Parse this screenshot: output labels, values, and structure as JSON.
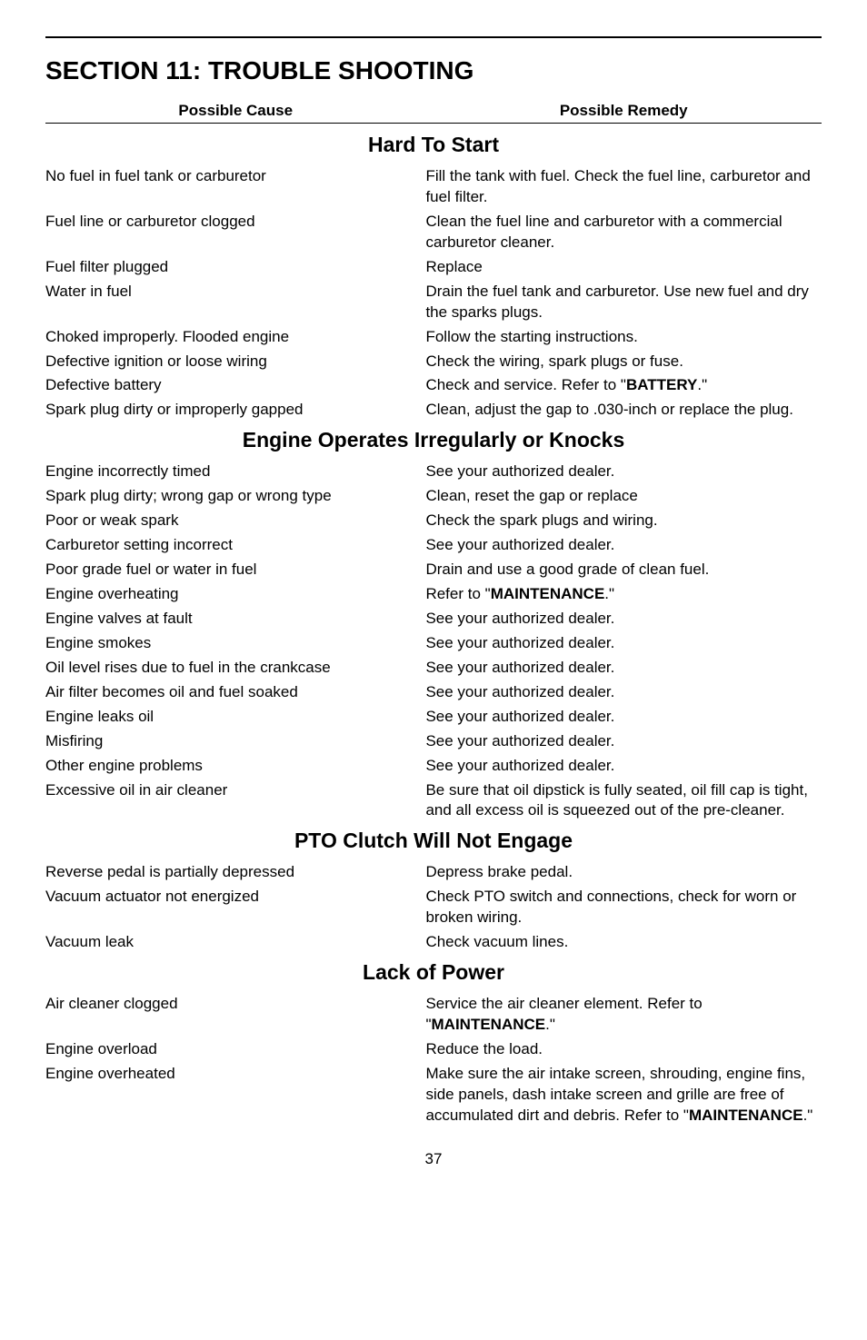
{
  "page": {
    "sectionTitle": "SECTION 11: TROUBLE SHOOTING",
    "columnHeaders": {
      "left": "Possible Cause",
      "right": "Possible Remedy"
    },
    "pageNumber": "37"
  },
  "sections": {
    "hardToStart": {
      "heading": "Hard To Start",
      "rows": [
        {
          "cause": "No fuel in fuel tank or carburetor",
          "remedy": "Fill the tank with fuel. Check the fuel line, carburetor and fuel filter."
        },
        {
          "cause": "Fuel line or carburetor clogged",
          "remedy": "Clean the fuel line and carburetor with a commercial carburetor cleaner."
        },
        {
          "cause": "Fuel filter plugged",
          "remedy": "Replace"
        },
        {
          "cause": "Water in fuel",
          "remedy": "Drain the fuel tank and carburetor. Use new fuel and dry the sparks plugs."
        },
        {
          "cause": "Choked improperly. Flooded engine",
          "remedy": "Follow the starting instructions."
        },
        {
          "cause": "Defective ignition or loose wiring",
          "remedy": "Check the wiring, spark plugs or fuse."
        }
      ],
      "batteryRow": {
        "cause": "Defective battery",
        "remedyPrefix": "Check and service. Refer to \"",
        "remedyBold": "BATTERY",
        "remedySuffix": ".\""
      },
      "lastRow": {
        "cause": "Spark plug dirty or improperly gapped",
        "remedy": "Clean, adjust the gap to .030-inch or replace the plug."
      }
    },
    "engineOperates": {
      "heading": "Engine Operates Irregularly or Knocks",
      "rows": [
        {
          "cause": "Engine incorrectly timed",
          "remedy": "See your authorized dealer."
        },
        {
          "cause": "Spark plug dirty; wrong gap or wrong type",
          "remedy": "Clean, reset the gap or replace"
        },
        {
          "cause": "Poor or weak spark",
          "remedy": "Check the spark plugs and wiring."
        },
        {
          "cause": "Carburetor setting incorrect",
          "remedy": "See your authorized dealer."
        },
        {
          "cause": "Poor grade fuel or water in fuel",
          "remedy": "Drain and use a good grade of clean fuel."
        }
      ],
      "maintenanceRow": {
        "cause": "Engine overheating",
        "remedyPrefix": "Refer to \"",
        "remedyBold": "MAINTENANCE",
        "remedySuffix": ".\""
      },
      "rowsAfter": [
        {
          "cause": "Engine valves at fault",
          "remedy": "See your authorized dealer."
        },
        {
          "cause": "Engine smokes",
          "remedy": "See your authorized dealer."
        },
        {
          "cause": "Oil level rises due to fuel in the crankcase",
          "remedy": "See your authorized dealer."
        },
        {
          "cause": "Air filter becomes oil and fuel soaked",
          "remedy": "See your authorized dealer."
        },
        {
          "cause": "Engine leaks oil",
          "remedy": "See your authorized dealer."
        },
        {
          "cause": "Misfiring",
          "remedy": "See your authorized dealer."
        },
        {
          "cause": "Other engine problems",
          "remedy": "See your authorized dealer."
        },
        {
          "cause": "Excessive oil in air cleaner",
          "remedy": "Be sure that oil dipstick is fully seated, oil fill cap is tight, and all excess oil is squeezed out of the pre-cleaner."
        }
      ]
    },
    "ptoClutch": {
      "heading": "PTO Clutch Will Not Engage",
      "rows": [
        {
          "cause": "Reverse pedal is partially depressed",
          "remedy": "Depress brake pedal."
        },
        {
          "cause": "Vacuum actuator not energized",
          "remedy": "Check PTO switch and connections, check for worn or broken wiring."
        },
        {
          "cause": "Vacuum leak",
          "remedy": "Check vacuum lines."
        }
      ]
    },
    "lackOfPower": {
      "heading": "Lack of Power",
      "airCleanerRow": {
        "cause": "Air cleaner clogged",
        "remedyPrefix": "Service the air cleaner element. Refer to \"",
        "remedyBold": "MAINTENANCE",
        "remedySuffix": ".\""
      },
      "overloadRow": {
        "cause": "Engine overload",
        "remedy": "Reduce the load."
      },
      "overheatedRow": {
        "cause": "Engine overheated",
        "remedyPrefix": "Make sure the air intake screen, shrouding, engine fins, side panels, dash intake screen and grille are free of accumulated dirt and debris. Refer to \"",
        "remedyBold": "MAINTENANCE",
        "remedySuffix": ".\""
      }
    }
  }
}
